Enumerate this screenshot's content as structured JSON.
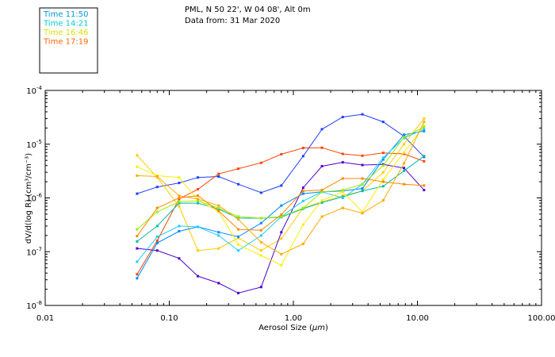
{
  "header": {
    "line1": "PML, N 50 22', W 04 08', Alt 0m",
    "line2": "Data from: 31 Mar 2020"
  },
  "chart_data": {
    "type": "line",
    "xlabel_prefix": "Aerosol Size (",
    "xlabel_unit": "µm",
    "xlabel_suffix": ")",
    "ylabel": "dV/d(log R) (cm³/cm⁻³)",
    "xscale": "log",
    "yscale": "log",
    "xlim": [
      0.01,
      100
    ],
    "ylim": [
      1e-08,
      0.0001
    ],
    "x_ticks": [
      {
        "value": 0.01,
        "label": "0.01"
      },
      {
        "value": 0.1,
        "label": "0.10"
      },
      {
        "value": 1,
        "label": "1.00"
      },
      {
        "value": 10,
        "label": "10.00"
      },
      {
        "value": 100,
        "label": "100.00"
      }
    ],
    "y_ticks": [
      {
        "value": 1e-08,
        "base": "10",
        "exp": "-8"
      },
      {
        "value": 1e-07,
        "base": "10",
        "exp": "-7"
      },
      {
        "value": 1e-06,
        "base": "10",
        "exp": "-6"
      },
      {
        "value": 1e-05,
        "base": "10",
        "exp": "-5"
      },
      {
        "value": 0.0001,
        "base": "10",
        "exp": "-4"
      }
    ],
    "grid": false,
    "legend_position": "top-left",
    "legend": [
      {
        "label": "Time 11:50",
        "color": "#0099dd"
      },
      {
        "label": "Time 14:21",
        "color": "#00cccc"
      },
      {
        "label": "Time 16:46",
        "color": "#dddd00"
      },
      {
        "label": "Time 17:19",
        "color": "#ff6600"
      }
    ],
    "series": [
      {
        "color": "#2040ff",
        "points": [
          [
            0.055,
            1.2e-06
          ],
          [
            0.08,
            1.6e-06
          ],
          [
            0.12,
            1.9e-06
          ],
          [
            0.17,
            2.4e-06
          ],
          [
            0.25,
            2.5e-06
          ],
          [
            0.36,
            1.8e-06
          ],
          [
            0.55,
            1.25e-06
          ],
          [
            0.8,
            1.7e-06
          ],
          [
            1.2,
            6e-06
          ],
          [
            1.7,
            1.9e-05
          ],
          [
            2.5,
            3.2e-05
          ],
          [
            3.6,
            3.6e-05
          ],
          [
            5.3,
            2.6e-05
          ],
          [
            7.8,
            1.4e-05
          ],
          [
            11.3,
            5.8e-06
          ]
        ]
      },
      {
        "color": "#ff4400",
        "points": [
          [
            0.055,
            3.8e-08
          ],
          [
            0.08,
            1.6e-07
          ],
          [
            0.12,
            9.6e-07
          ],
          [
            0.17,
            1.45e-06
          ],
          [
            0.25,
            2.8e-06
          ],
          [
            0.36,
            3.5e-06
          ],
          [
            0.55,
            4.5e-06
          ],
          [
            0.8,
            6.5e-06
          ],
          [
            1.2,
            8.5e-06
          ],
          [
            1.7,
            8.6e-06
          ],
          [
            2.5,
            6.6e-06
          ],
          [
            3.6,
            6.1e-06
          ],
          [
            5.3,
            6.9e-06
          ],
          [
            7.8,
            6.6e-06
          ],
          [
            11.3,
            4.8e-06
          ]
        ]
      },
      {
        "color": "#ffcc00",
        "points": [
          [
            0.055,
            6.2e-06
          ],
          [
            0.08,
            2.4e-06
          ],
          [
            0.12,
            7e-07
          ],
          [
            0.17,
            1.05e-07
          ],
          [
            0.25,
            1.15e-07
          ],
          [
            0.36,
            1.8e-07
          ],
          [
            0.55,
            1.05e-07
          ],
          [
            0.8,
            1.75e-07
          ],
          [
            1.2,
            6.5e-07
          ],
          [
            1.7,
            8.5e-07
          ],
          [
            2.5,
            1.1e-06
          ],
          [
            3.6,
            1.35e-06
          ],
          [
            5.3,
            3e-06
          ],
          [
            7.8,
            1e-05
          ],
          [
            11.3,
            3e-05
          ]
        ]
      },
      {
        "color": "#5000cc",
        "points": [
          [
            0.055,
            1.15e-07
          ],
          [
            0.08,
            1.05e-07
          ],
          [
            0.12,
            7.5e-08
          ],
          [
            0.17,
            3.5e-08
          ],
          [
            0.25,
            2.6e-08
          ],
          [
            0.36,
            1.7e-08
          ],
          [
            0.55,
            2.2e-08
          ],
          [
            0.8,
            2.3e-07
          ],
          [
            1.2,
            1.55e-06
          ],
          [
            1.7,
            3.9e-06
          ],
          [
            2.5,
            4.6e-06
          ],
          [
            3.6,
            4.1e-06
          ],
          [
            5.3,
            4.2e-06
          ],
          [
            7.8,
            3.6e-06
          ],
          [
            11.3,
            1.4e-06
          ]
        ]
      },
      {
        "color": "#00bbaa",
        "points": [
          [
            0.055,
            1.55e-07
          ],
          [
            0.08,
            3e-07
          ],
          [
            0.12,
            8e-07
          ],
          [
            0.17,
            8e-07
          ],
          [
            0.25,
            6.2e-07
          ],
          [
            0.36,
            4.2e-07
          ],
          [
            0.55,
            4.2e-07
          ],
          [
            0.8,
            4.4e-07
          ],
          [
            1.2,
            6.3e-07
          ],
          [
            1.7,
            8.2e-07
          ],
          [
            2.5,
            1.05e-06
          ],
          [
            3.6,
            1.35e-06
          ],
          [
            5.3,
            1.65e-06
          ],
          [
            7.8,
            3.2e-06
          ],
          [
            11.3,
            6e-06
          ]
        ]
      },
      {
        "color": "#0088ff",
        "points": [
          [
            0.055,
            3.2e-08
          ],
          [
            0.08,
            1.45e-07
          ],
          [
            0.12,
            2.4e-07
          ],
          [
            0.17,
            2.9e-07
          ],
          [
            0.25,
            2.3e-07
          ],
          [
            0.36,
            1.9e-07
          ],
          [
            0.55,
            3.4e-07
          ],
          [
            0.8,
            7.2e-07
          ],
          [
            1.2,
            1.2e-06
          ],
          [
            1.7,
            1.3e-06
          ],
          [
            2.5,
            1.35e-06
          ],
          [
            3.6,
            1.5e-06
          ],
          [
            5.3,
            5.2e-06
          ],
          [
            7.8,
            1.5e-05
          ],
          [
            11.3,
            1.75e-05
          ]
        ]
      },
      {
        "color": "#22ccff",
        "points": [
          [
            0.055,
            6.5e-08
          ],
          [
            0.08,
            1.9e-07
          ],
          [
            0.12,
            3e-07
          ],
          [
            0.17,
            2.9e-07
          ],
          [
            0.25,
            2e-07
          ],
          [
            0.36,
            1.05e-07
          ],
          [
            0.55,
            2e-07
          ],
          [
            0.8,
            4.5e-07
          ],
          [
            1.2,
            8.8e-07
          ],
          [
            1.7,
            1.3e-06
          ],
          [
            2.5,
            1e-06
          ],
          [
            3.6,
            1.8e-06
          ],
          [
            5.3,
            5.6e-06
          ],
          [
            7.8,
            1.3e-05
          ],
          [
            11.3,
            1.9e-05
          ]
        ]
      },
      {
        "color": "#ffee00",
        "points": [
          [
            0.055,
            3.8e-06
          ],
          [
            0.08,
            2.6e-06
          ],
          [
            0.12,
            2.4e-06
          ],
          [
            0.17,
            9e-07
          ],
          [
            0.25,
            5.6e-07
          ],
          [
            0.36,
            1.35e-07
          ],
          [
            0.55,
            8.5e-08
          ],
          [
            0.8,
            5.6e-08
          ],
          [
            1.2,
            3.2e-07
          ],
          [
            1.7,
            9e-07
          ],
          [
            2.5,
            1.3e-06
          ],
          [
            3.6,
            5.5e-07
          ],
          [
            5.3,
            2.2e-06
          ],
          [
            7.8,
            7e-06
          ],
          [
            11.3,
            2.2e-05
          ]
        ]
      },
      {
        "color": "#99ee00",
        "points": [
          [
            0.055,
            2.6e-07
          ],
          [
            0.08,
            5.5e-07
          ],
          [
            0.12,
            8.5e-07
          ],
          [
            0.17,
            8.8e-07
          ],
          [
            0.25,
            6.5e-07
          ],
          [
            0.36,
            4.5e-07
          ],
          [
            0.55,
            4.2e-07
          ],
          [
            0.8,
            4.5e-07
          ],
          [
            1.2,
            6.5e-07
          ],
          [
            1.7,
            1.3e-06
          ],
          [
            2.5,
            1.4e-06
          ],
          [
            3.6,
            1.8e-06
          ],
          [
            5.3,
            4e-06
          ],
          [
            7.8,
            1.35e-05
          ],
          [
            11.3,
            2.1e-05
          ]
        ]
      },
      {
        "color": "#ffaa00",
        "points": [
          [
            0.055,
            2.6e-06
          ],
          [
            0.08,
            2.5e-06
          ],
          [
            0.12,
            1.1e-06
          ],
          [
            0.17,
            9.5e-07
          ],
          [
            0.25,
            7.2e-07
          ],
          [
            0.36,
            4e-07
          ],
          [
            0.55,
            1.5e-07
          ],
          [
            0.8,
            9e-08
          ],
          [
            1.2,
            1.4e-07
          ],
          [
            1.7,
            4.5e-07
          ],
          [
            2.5,
            6.5e-07
          ],
          [
            3.6,
            5.2e-07
          ],
          [
            5.3,
            9e-07
          ],
          [
            7.8,
            4.4e-06
          ],
          [
            11.3,
            2.6e-05
          ]
        ]
      },
      {
        "color": "#ff8800",
        "points": [
          [
            0.055,
            1.95e-07
          ],
          [
            0.08,
            6.5e-07
          ],
          [
            0.12,
            1e-06
          ],
          [
            0.17,
            1.1e-06
          ],
          [
            0.25,
            5.7e-07
          ],
          [
            0.36,
            2.6e-07
          ],
          [
            0.55,
            2.5e-07
          ],
          [
            0.8,
            4.9e-07
          ],
          [
            1.2,
            1.35e-06
          ],
          [
            1.7,
            1.4e-06
          ],
          [
            2.5,
            2.3e-06
          ],
          [
            3.6,
            2.3e-06
          ],
          [
            5.3,
            2e-06
          ],
          [
            7.8,
            1.8e-06
          ],
          [
            11.3,
            1.7e-06
          ]
        ]
      }
    ]
  }
}
